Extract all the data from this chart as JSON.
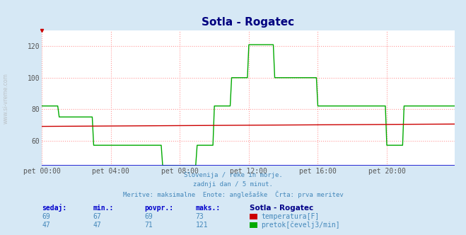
{
  "title": "Sotla - Rogatec",
  "title_color": "#000080",
  "bg_color": "#d6e8f5",
  "plot_bg_color": "#ffffff",
  "grid_color": "#ff9999",
  "grid_dot_color": "#cc4444",
  "xlim": [
    0,
    287
  ],
  "ylim": [
    44,
    130
  ],
  "yticks": [
    60,
    80,
    100,
    120
  ],
  "xtick_labels": [
    "pet 00:00",
    "pet 04:00",
    "pet 08:00",
    "pet 12:00",
    "pet 16:00",
    "pet 20:00"
  ],
  "xtick_positions": [
    0,
    48,
    96,
    144,
    192,
    240
  ],
  "temp_color": "#cc0000",
  "flow_color": "#00aa00",
  "blue_line_color": "#0000cc",
  "subtitle_lines": [
    "Slovenija / reke in morje.",
    "zadnji dan / 5 minut.",
    "Meritve: maksimalne  Enote: anglešaške  Črta: prva meritev"
  ],
  "subtitle_color": "#4488bb",
  "table_header_color": "#0000cc",
  "table_data_color": "#4488bb",
  "table_bold_color": "#000088",
  "temp_sedaj": 69,
  "temp_min": 67,
  "temp_povpr": 69,
  "temp_maks": 73,
  "flow_sedaj": 47,
  "flow_min": 47,
  "flow_povpr": 71,
  "flow_maks": 121
}
